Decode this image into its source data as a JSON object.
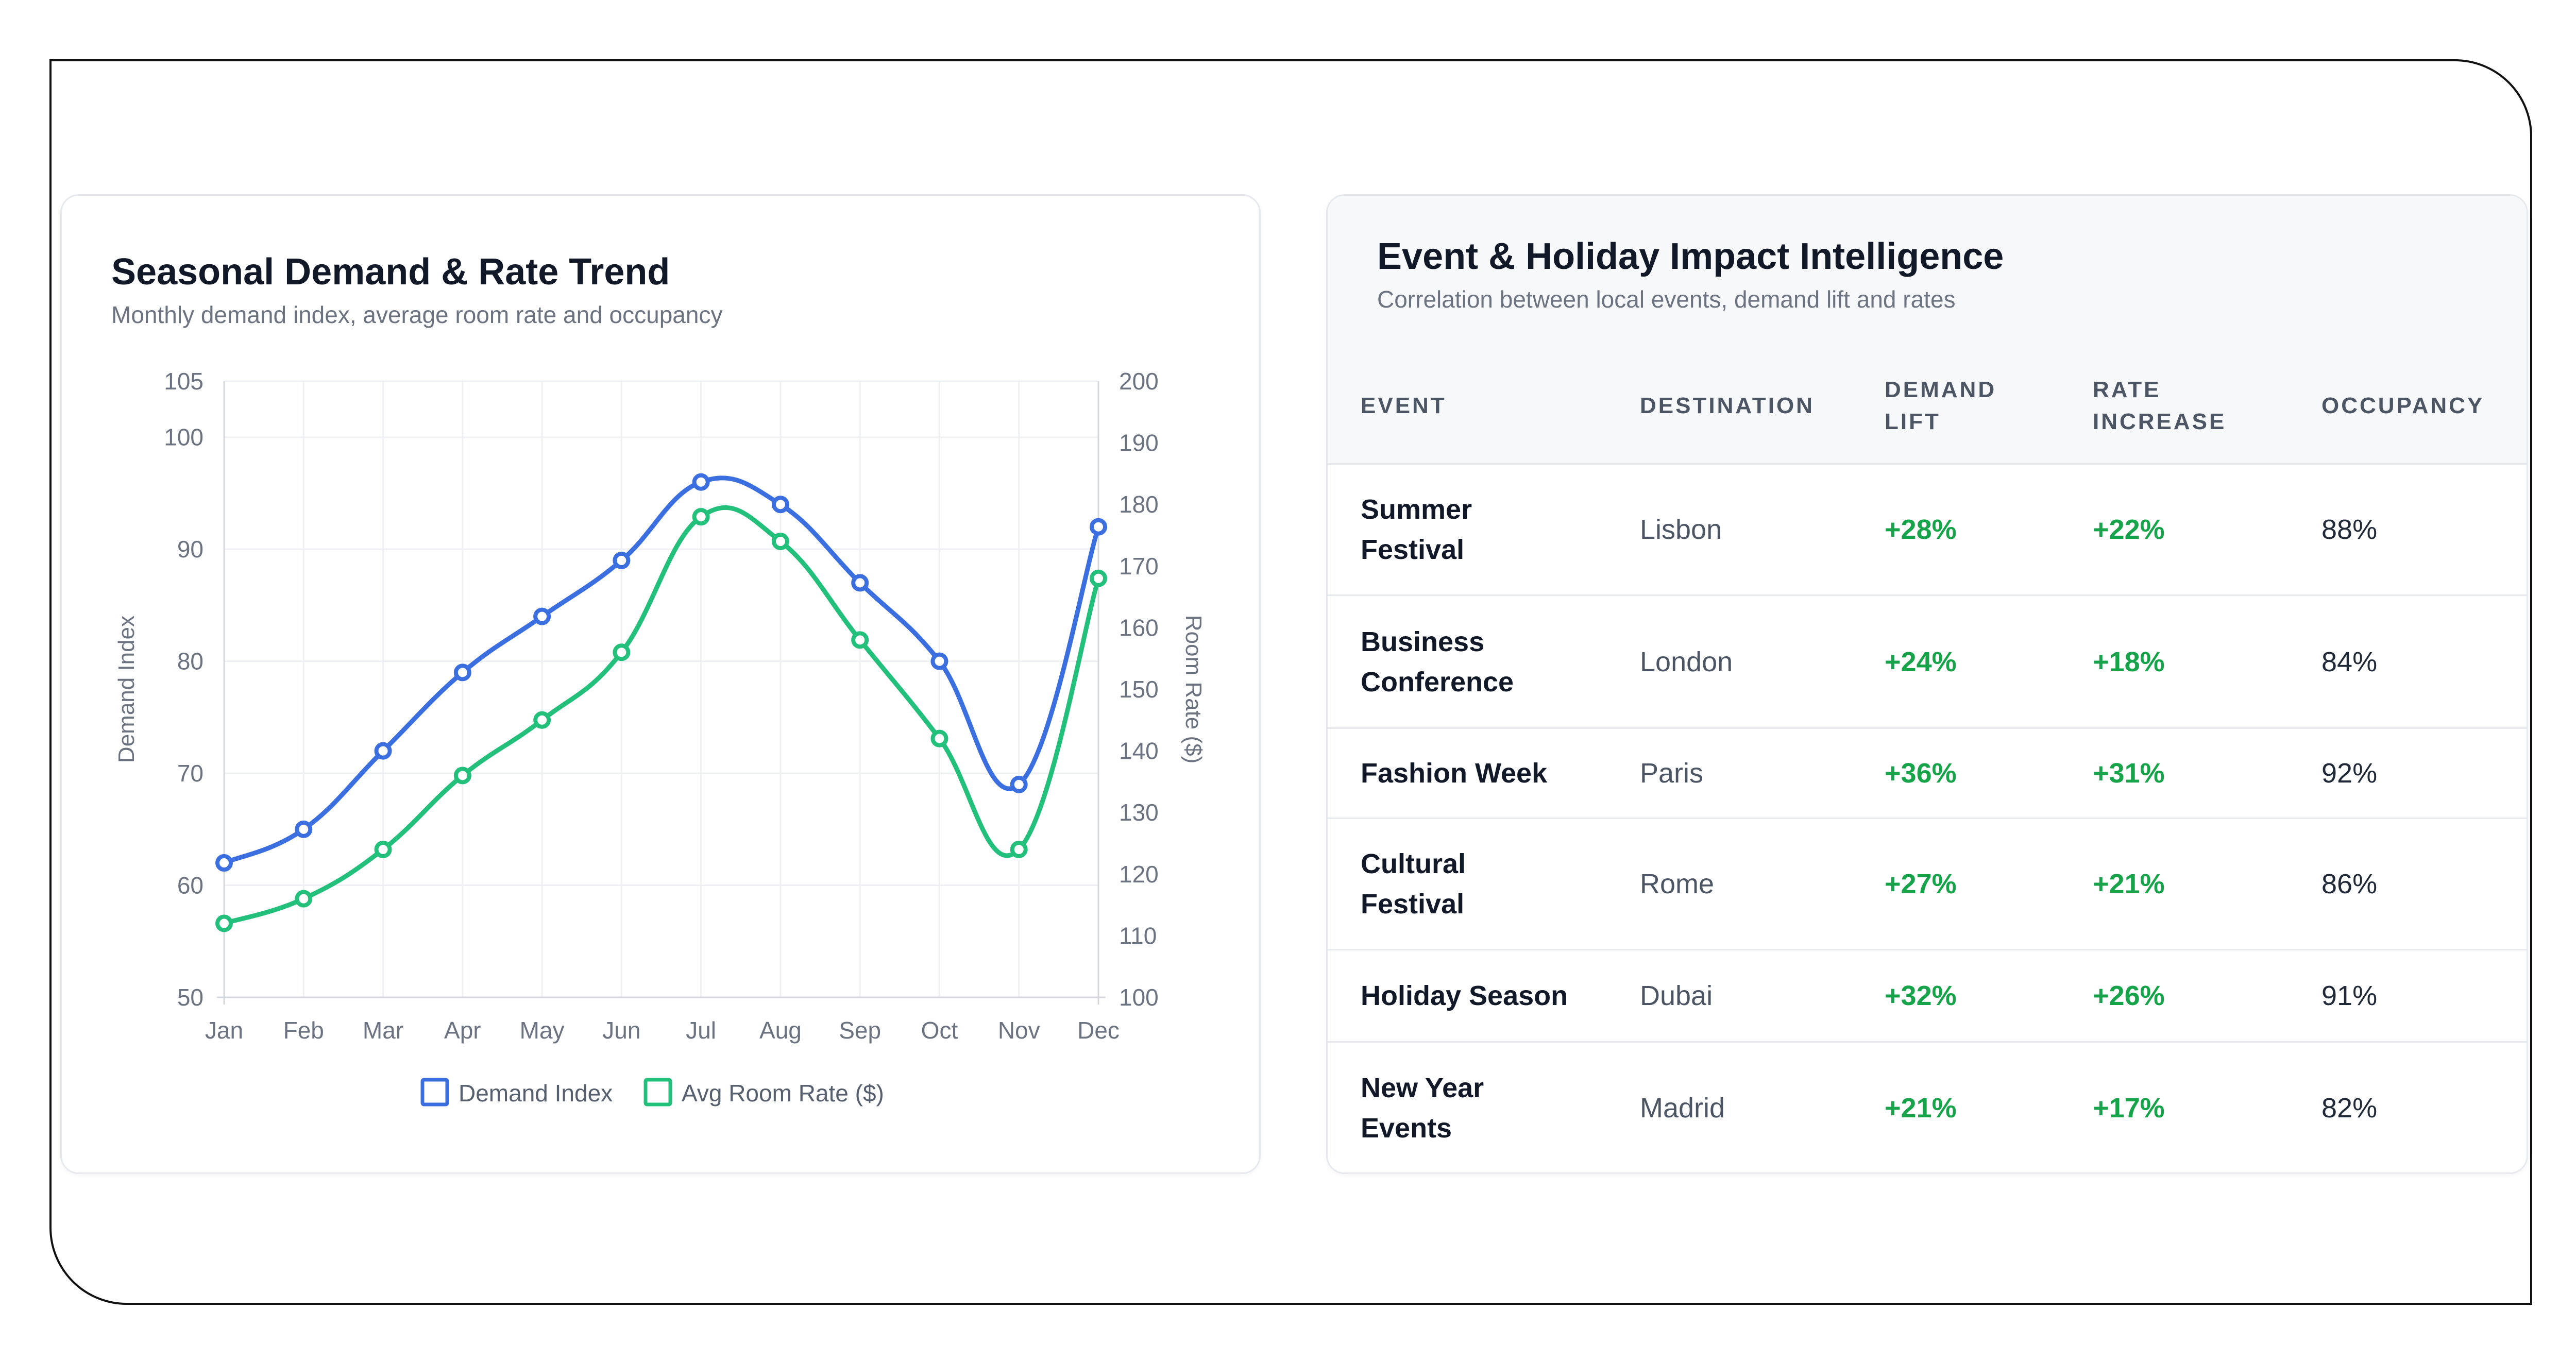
{
  "left_card": {
    "title": "Seasonal Demand & Rate Trend",
    "subtitle": "Monthly demand index, average room rate and occupancy"
  },
  "right_card": {
    "title": "Event & Holiday Impact Intelligence",
    "subtitle": "Correlation between local events, demand lift and rates"
  },
  "colors": {
    "demand": "#3b6fe0",
    "rate": "#22c07a",
    "positive": "#16a34a",
    "grid": "#eef0f3"
  },
  "chart_data": {
    "type": "line",
    "categories": [
      "Jan",
      "Feb",
      "Mar",
      "Apr",
      "May",
      "Jun",
      "Jul",
      "Aug",
      "Sep",
      "Oct",
      "Nov",
      "Dec"
    ],
    "series": [
      {
        "name": "Demand Index",
        "axis": "left",
        "values": [
          62,
          65,
          72,
          79,
          84,
          89,
          96,
          94,
          87,
          80,
          69,
          92
        ]
      },
      {
        "name": "Avg Room Rate ($)",
        "axis": "right",
        "values": [
          112,
          116,
          124,
          136,
          145,
          156,
          178,
          174,
          158,
          142,
          124,
          168
        ]
      }
    ],
    "y_left": {
      "label": "Demand Index",
      "ticks": [
        50,
        60,
        70,
        80,
        90,
        100,
        105
      ],
      "range": [
        50,
        105
      ]
    },
    "y_right": {
      "label": "Room Rate ($)",
      "ticks": [
        100,
        110,
        120,
        130,
        140,
        150,
        160,
        170,
        180,
        190,
        200
      ],
      "range": [
        100,
        200
      ]
    },
    "grid": true,
    "legend_position": "bottom"
  },
  "table": {
    "headers": [
      "EVENT",
      "DESTINATION",
      "DEMAND\nLIFT",
      "RATE\nINCREASE",
      "OCCUPANCY"
    ],
    "rows": [
      {
        "event": "Summer\nFestival",
        "destination": "Lisbon",
        "demand_lift": "+28%",
        "rate_increase": "+22%",
        "occupancy": "88%"
      },
      {
        "event": "Business\nConference",
        "destination": "London",
        "demand_lift": "+24%",
        "rate_increase": "+18%",
        "occupancy": "84%"
      },
      {
        "event": "Fashion Week",
        "destination": "Paris",
        "demand_lift": "+36%",
        "rate_increase": "+31%",
        "occupancy": "92%"
      },
      {
        "event": "Cultural\nFestival",
        "destination": "Rome",
        "demand_lift": "+27%",
        "rate_increase": "+21%",
        "occupancy": "86%"
      },
      {
        "event": "Holiday Season",
        "destination": "Dubai",
        "demand_lift": "+32%",
        "rate_increase": "+26%",
        "occupancy": "91%"
      },
      {
        "event": "New Year\nEvents",
        "destination": "Madrid",
        "demand_lift": "+21%",
        "rate_increase": "+17%",
        "occupancy": "82%"
      }
    ]
  }
}
